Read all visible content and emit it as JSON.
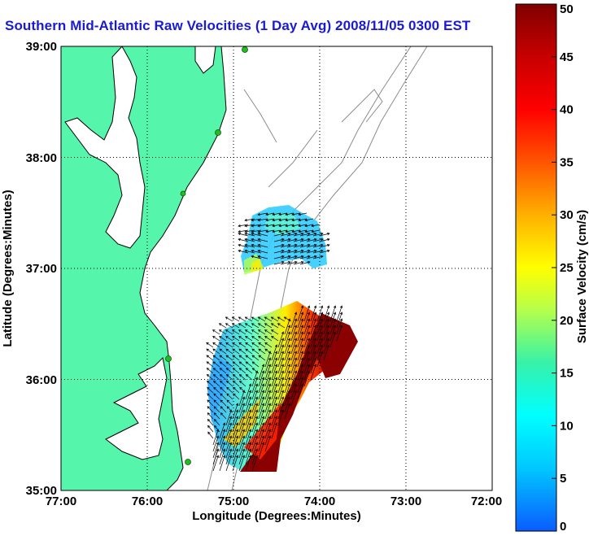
{
  "title": "Southern Mid-Atlantic Raw Velocities (1 Day Avg) 2008/11/05 0300 EST",
  "axes": {
    "xlabel": "Longitude (Degrees:Minutes)",
    "ylabel": "Latitude (Degrees:Minutes)",
    "x_ticks": [
      "77:00",
      "76:00",
      "75:00",
      "74:00",
      "73:00",
      "72:00"
    ],
    "y_ticks": [
      "39:00",
      "38:00",
      "37:00",
      "36:00",
      "35:00"
    ],
    "xlim": [
      -77,
      -72
    ],
    "ylim": [
      35,
      39
    ],
    "grid": "dotted"
  },
  "colorbar": {
    "label": "Surface Velocity (cm/s)",
    "ticks": [
      "50",
      "45",
      "40",
      "35",
      "30",
      "25",
      "20",
      "15",
      "10",
      "5",
      "0"
    ],
    "range": [
      0,
      50
    ],
    "colors": [
      "#0a5cff",
      "#00c8ff",
      "#00ffff",
      "#37f2a8",
      "#b6ff4a",
      "#ffff00",
      "#ffb000",
      "#ff5500",
      "#ff0000",
      "#c80000",
      "#800000"
    ]
  },
  "colors": {
    "land": "#55f5ac",
    "coast": "#000000",
    "bathymetry": "#8c8c8c",
    "stations": "#22bb22",
    "title": "#1a1ad6"
  }
}
